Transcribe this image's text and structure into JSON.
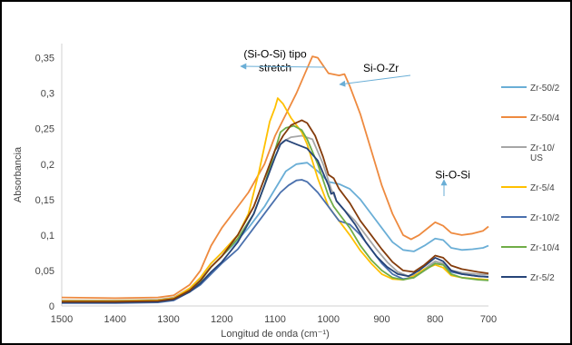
{
  "chart_data": {
    "type": "line",
    "title": "",
    "xlabel": "Longitud de onda (cm⁻¹)",
    "ylabel": "Absorbancia",
    "xlim": [
      1500,
      700
    ],
    "ylim": [
      0,
      0.37
    ],
    "x_reversed": true,
    "grid": false,
    "legend_position": "right",
    "xticks": [
      {
        "value": 1500,
        "label": "1500"
      },
      {
        "value": 1400,
        "label": "1400"
      },
      {
        "value": 1300,
        "label": "1300"
      },
      {
        "value": 1200,
        "label": "1200"
      },
      {
        "value": 1100,
        "label": "1100"
      },
      {
        "value": 1000,
        "label": "1000"
      },
      {
        "value": 900,
        "label": "900"
      },
      {
        "value": 800,
        "label": "800"
      },
      {
        "value": 700,
        "label": "700"
      }
    ],
    "yticks": [
      {
        "value": 0,
        "label": "0"
      },
      {
        "value": 0.05,
        "label": "0,05"
      },
      {
        "value": 0.1,
        "label": "0,1"
      },
      {
        "value": 0.15,
        "label": "0,15"
      },
      {
        "value": 0.2,
        "label": "0,2"
      },
      {
        "value": 0.25,
        "label": "0,25"
      },
      {
        "value": 0.3,
        "label": "0,3"
      },
      {
        "value": 0.35,
        "label": "0,35"
      }
    ],
    "series": [
      {
        "name": "Zr-50/2",
        "color": "#6aaed6",
        "points": [
          [
            1500,
            0.005
          ],
          [
            1400,
            0.006
          ],
          [
            1320,
            0.007
          ],
          [
            1280,
            0.012
          ],
          [
            1250,
            0.03
          ],
          [
            1220,
            0.055
          ],
          [
            1180,
            0.085
          ],
          [
            1150,
            0.11
          ],
          [
            1120,
            0.14
          ],
          [
            1100,
            0.165
          ],
          [
            1080,
            0.19
          ],
          [
            1060,
            0.2
          ],
          [
            1040,
            0.202
          ],
          [
            1020,
            0.19
          ],
          [
            1000,
            0.175
          ],
          [
            980,
            0.172
          ],
          [
            960,
            0.165
          ],
          [
            940,
            0.15
          ],
          [
            920,
            0.13
          ],
          [
            900,
            0.11
          ],
          [
            880,
            0.09
          ],
          [
            860,
            0.079
          ],
          [
            840,
            0.077
          ],
          [
            820,
            0.085
          ],
          [
            800,
            0.095
          ],
          [
            785,
            0.093
          ],
          [
            770,
            0.082
          ],
          [
            750,
            0.079
          ],
          [
            730,
            0.08
          ],
          [
            710,
            0.082
          ],
          [
            700,
            0.085
          ]
        ]
      },
      {
        "name": "Zr-50/4",
        "color": "#ee8a3f",
        "points": [
          [
            1500,
            0.012
          ],
          [
            1400,
            0.011
          ],
          [
            1320,
            0.012
          ],
          [
            1290,
            0.015
          ],
          [
            1260,
            0.03
          ],
          [
            1240,
            0.05
          ],
          [
            1220,
            0.085
          ],
          [
            1200,
            0.11
          ],
          [
            1180,
            0.13
          ],
          [
            1150,
            0.16
          ],
          [
            1120,
            0.2
          ],
          [
            1100,
            0.24
          ],
          [
            1080,
            0.27
          ],
          [
            1060,
            0.3
          ],
          [
            1040,
            0.335
          ],
          [
            1030,
            0.352
          ],
          [
            1020,
            0.35
          ],
          [
            1000,
            0.328
          ],
          [
            980,
            0.325
          ],
          [
            970,
            0.327
          ],
          [
            960,
            0.31
          ],
          [
            940,
            0.27
          ],
          [
            920,
            0.22
          ],
          [
            900,
            0.17
          ],
          [
            880,
            0.13
          ],
          [
            860,
            0.1
          ],
          [
            845,
            0.094
          ],
          [
            830,
            0.1
          ],
          [
            810,
            0.112
          ],
          [
            800,
            0.118
          ],
          [
            785,
            0.113
          ],
          [
            770,
            0.103
          ],
          [
            750,
            0.1
          ],
          [
            730,
            0.102
          ],
          [
            710,
            0.106
          ],
          [
            700,
            0.112
          ]
        ]
      },
      {
        "name": "Zr-10/\nUS",
        "color": "#a6a6a6",
        "points": [
          [
            1500,
            0.008
          ],
          [
            1400,
            0.008
          ],
          [
            1320,
            0.009
          ],
          [
            1290,
            0.012
          ],
          [
            1260,
            0.025
          ],
          [
            1240,
            0.04
          ],
          [
            1220,
            0.06
          ],
          [
            1200,
            0.075
          ],
          [
            1170,
            0.1
          ],
          [
            1140,
            0.14
          ],
          [
            1120,
            0.18
          ],
          [
            1100,
            0.22
          ],
          [
            1085,
            0.232
          ],
          [
            1070,
            0.238
          ],
          [
            1050,
            0.24
          ],
          [
            1030,
            0.235
          ],
          [
            1010,
            0.2
          ],
          [
            995,
            0.165
          ],
          [
            985,
            0.148
          ],
          [
            970,
            0.135
          ],
          [
            950,
            0.12
          ],
          [
            930,
            0.1
          ],
          [
            910,
            0.08
          ],
          [
            890,
            0.062
          ],
          [
            870,
            0.048
          ],
          [
            850,
            0.042
          ],
          [
            830,
            0.046
          ],
          [
            810,
            0.058
          ],
          [
            800,
            0.063
          ],
          [
            785,
            0.06
          ],
          [
            770,
            0.05
          ],
          [
            750,
            0.047
          ],
          [
            720,
            0.045
          ],
          [
            700,
            0.044
          ]
        ]
      },
      {
        "name": "Zr-5/4",
        "color": "#ffc000",
        "points": [
          [
            1500,
            0.007
          ],
          [
            1400,
            0.007
          ],
          [
            1320,
            0.008
          ],
          [
            1290,
            0.011
          ],
          [
            1260,
            0.025
          ],
          [
            1240,
            0.04
          ],
          [
            1220,
            0.06
          ],
          [
            1200,
            0.075
          ],
          [
            1170,
            0.1
          ],
          [
            1150,
            0.13
          ],
          [
            1130,
            0.19
          ],
          [
            1110,
            0.26
          ],
          [
            1100,
            0.28
          ],
          [
            1095,
            0.293
          ],
          [
            1085,
            0.285
          ],
          [
            1070,
            0.265
          ],
          [
            1060,
            0.255
          ],
          [
            1050,
            0.245
          ],
          [
            1040,
            0.228
          ],
          [
            1020,
            0.18
          ],
          [
            1000,
            0.14
          ],
          [
            980,
            0.12
          ],
          [
            960,
            0.1
          ],
          [
            940,
            0.078
          ],
          [
            920,
            0.06
          ],
          [
            900,
            0.045
          ],
          [
            880,
            0.038
          ],
          [
            860,
            0.037
          ],
          [
            840,
            0.042
          ],
          [
            820,
            0.052
          ],
          [
            800,
            0.058
          ],
          [
            785,
            0.054
          ],
          [
            770,
            0.043
          ],
          [
            750,
            0.04
          ],
          [
            720,
            0.038
          ],
          [
            700,
            0.037
          ]
        ]
      },
      {
        "name": "Zr-10/2",
        "color": "#4a70ad",
        "points": [
          [
            1500,
            0.004
          ],
          [
            1400,
            0.004
          ],
          [
            1320,
            0.005
          ],
          [
            1290,
            0.008
          ],
          [
            1260,
            0.02
          ],
          [
            1240,
            0.03
          ],
          [
            1220,
            0.045
          ],
          [
            1200,
            0.06
          ],
          [
            1170,
            0.08
          ],
          [
            1140,
            0.11
          ],
          [
            1110,
            0.14
          ],
          [
            1090,
            0.16
          ],
          [
            1075,
            0.17
          ],
          [
            1060,
            0.177
          ],
          [
            1050,
            0.178
          ],
          [
            1040,
            0.175
          ],
          [
            1020,
            0.16
          ],
          [
            1000,
            0.14
          ],
          [
            990,
            0.13
          ],
          [
            980,
            0.12
          ],
          [
            960,
            0.115
          ],
          [
            940,
            0.1
          ],
          [
            920,
            0.08
          ],
          [
            900,
            0.06
          ],
          [
            880,
            0.045
          ],
          [
            860,
            0.038
          ],
          [
            840,
            0.04
          ],
          [
            820,
            0.05
          ],
          [
            800,
            0.06
          ],
          [
            785,
            0.058
          ],
          [
            770,
            0.048
          ],
          [
            750,
            0.045
          ],
          [
            720,
            0.042
          ],
          [
            700,
            0.041
          ]
        ]
      },
      {
        "name": "Zr-10/4",
        "color": "#70ad47",
        "points": [
          [
            1500,
            0.006
          ],
          [
            1400,
            0.006
          ],
          [
            1320,
            0.007
          ],
          [
            1290,
            0.01
          ],
          [
            1260,
            0.02
          ],
          [
            1240,
            0.035
          ],
          [
            1220,
            0.055
          ],
          [
            1200,
            0.07
          ],
          [
            1170,
            0.095
          ],
          [
            1140,
            0.13
          ],
          [
            1120,
            0.17
          ],
          [
            1100,
            0.22
          ],
          [
            1090,
            0.245
          ],
          [
            1080,
            0.251
          ],
          [
            1065,
            0.254
          ],
          [
            1050,
            0.248
          ],
          [
            1040,
            0.235
          ],
          [
            1020,
            0.2
          ],
          [
            1000,
            0.155
          ],
          [
            990,
            0.14
          ],
          [
            980,
            0.13
          ],
          [
            960,
            0.11
          ],
          [
            940,
            0.085
          ],
          [
            920,
            0.065
          ],
          [
            900,
            0.05
          ],
          [
            880,
            0.04
          ],
          [
            860,
            0.037
          ],
          [
            840,
            0.04
          ],
          [
            820,
            0.05
          ],
          [
            800,
            0.06
          ],
          [
            785,
            0.058
          ],
          [
            770,
            0.045
          ],
          [
            750,
            0.04
          ],
          [
            720,
            0.037
          ],
          [
            700,
            0.036
          ]
        ]
      },
      {
        "name": "Zr-5/2",
        "color": "#264478",
        "points": [
          [
            1500,
            0.005
          ],
          [
            1400,
            0.005
          ],
          [
            1320,
            0.006
          ],
          [
            1290,
            0.009
          ],
          [
            1260,
            0.02
          ],
          [
            1240,
            0.032
          ],
          [
            1220,
            0.048
          ],
          [
            1200,
            0.062
          ],
          [
            1170,
            0.09
          ],
          [
            1140,
            0.13
          ],
          [
            1120,
            0.17
          ],
          [
            1100,
            0.21
          ],
          [
            1090,
            0.228
          ],
          [
            1080,
            0.234
          ],
          [
            1060,
            0.228
          ],
          [
            1040,
            0.222
          ],
          [
            1020,
            0.205
          ],
          [
            1000,
            0.17
          ],
          [
            995,
            0.158
          ],
          [
            990,
            0.16
          ],
          [
            985,
            0.148
          ],
          [
            970,
            0.135
          ],
          [
            950,
            0.115
          ],
          [
            930,
            0.09
          ],
          [
            910,
            0.07
          ],
          [
            890,
            0.055
          ],
          [
            870,
            0.045
          ],
          [
            850,
            0.042
          ],
          [
            830,
            0.05
          ],
          [
            810,
            0.062
          ],
          [
            800,
            0.068
          ],
          [
            785,
            0.063
          ],
          [
            770,
            0.05
          ],
          [
            750,
            0.045
          ],
          [
            720,
            0.042
          ],
          [
            700,
            0.041
          ]
        ]
      },
      {
        "name": "",
        "color": "#843c0c",
        "points": [
          [
            1500,
            0.006
          ],
          [
            1400,
            0.006
          ],
          [
            1320,
            0.007
          ],
          [
            1290,
            0.01
          ],
          [
            1260,
            0.022
          ],
          [
            1240,
            0.036
          ],
          [
            1220,
            0.055
          ],
          [
            1200,
            0.07
          ],
          [
            1170,
            0.1
          ],
          [
            1140,
            0.14
          ],
          [
            1120,
            0.18
          ],
          [
            1100,
            0.22
          ],
          [
            1085,
            0.24
          ],
          [
            1070,
            0.255
          ],
          [
            1050,
            0.262
          ],
          [
            1040,
            0.258
          ],
          [
            1025,
            0.24
          ],
          [
            1010,
            0.21
          ],
          [
            1000,
            0.185
          ],
          [
            990,
            0.18
          ],
          [
            980,
            0.165
          ],
          [
            960,
            0.145
          ],
          [
            940,
            0.12
          ],
          [
            920,
            0.1
          ],
          [
            900,
            0.08
          ],
          [
            880,
            0.062
          ],
          [
            860,
            0.05
          ],
          [
            840,
            0.048
          ],
          [
            820,
            0.058
          ],
          [
            800,
            0.071
          ],
          [
            785,
            0.068
          ],
          [
            770,
            0.057
          ],
          [
            750,
            0.052
          ],
          [
            720,
            0.048
          ],
          [
            700,
            0.046
          ]
        ]
      }
    ],
    "annotations": [
      {
        "text": "(Si-O-Si) tipo\nstretch",
        "x": 1100,
        "y": 0.35,
        "arrow_to": [
          1030,
          0.352
        ]
      },
      {
        "text": "Si-O-Zr",
        "x": 935,
        "y": 0.33,
        "arrow_to": [
          1000,
          0.328
        ]
      },
      {
        "text": "Si-O-Si",
        "x": 800,
        "y": 0.18,
        "arrow_to": [
          800,
          0.13
        ]
      }
    ]
  }
}
